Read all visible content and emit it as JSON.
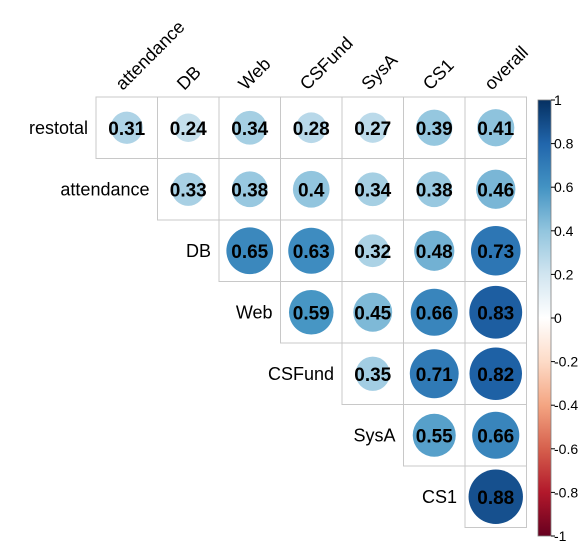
{
  "chart_data": {
    "type": "heatmap",
    "style": "correlation-matrix-upper-triangle-circles",
    "title": "",
    "row_labels": [
      "restotal",
      "attendance",
      "DB",
      "Web",
      "CSFund",
      "SysA",
      "CS1"
    ],
    "col_labels": [
      "attendance",
      "DB",
      "Web",
      "CSFund",
      "SysA",
      "CS1",
      "overall"
    ],
    "rows": [
      {
        "label": "restotal",
        "cells": [
          {
            "col": "attendance",
            "value": 0.31,
            "text": "0.31"
          },
          {
            "col": "DB",
            "value": 0.24,
            "text": "0.24"
          },
          {
            "col": "Web",
            "value": 0.34,
            "text": "0.34"
          },
          {
            "col": "CSFund",
            "value": 0.28,
            "text": "0.28"
          },
          {
            "col": "SysA",
            "value": 0.27,
            "text": "0.27"
          },
          {
            "col": "CS1",
            "value": 0.39,
            "text": "0.39"
          },
          {
            "col": "overall",
            "value": 0.41,
            "text": "0.41"
          }
        ]
      },
      {
        "label": "attendance",
        "cells": [
          {
            "col": "DB",
            "value": 0.33,
            "text": "0.33"
          },
          {
            "col": "Web",
            "value": 0.38,
            "text": "0.38"
          },
          {
            "col": "CSFund",
            "value": 0.4,
            "text": "0.4"
          },
          {
            "col": "SysA",
            "value": 0.34,
            "text": "0.34"
          },
          {
            "col": "CS1",
            "value": 0.38,
            "text": "0.38"
          },
          {
            "col": "overall",
            "value": 0.46,
            "text": "0.46"
          }
        ]
      },
      {
        "label": "DB",
        "cells": [
          {
            "col": "Web",
            "value": 0.65,
            "text": "0.65"
          },
          {
            "col": "CSFund",
            "value": 0.63,
            "text": "0.63"
          },
          {
            "col": "SysA",
            "value": 0.32,
            "text": "0.32"
          },
          {
            "col": "CS1",
            "value": 0.48,
            "text": "0.48"
          },
          {
            "col": "overall",
            "value": 0.73,
            "text": "0.73"
          }
        ]
      },
      {
        "label": "Web",
        "cells": [
          {
            "col": "CSFund",
            "value": 0.59,
            "text": "0.59"
          },
          {
            "col": "SysA",
            "value": 0.45,
            "text": "0.45"
          },
          {
            "col": "CS1",
            "value": 0.66,
            "text": "0.66"
          },
          {
            "col": "overall",
            "value": 0.83,
            "text": "0.83"
          }
        ]
      },
      {
        "label": "CSFund",
        "cells": [
          {
            "col": "SysA",
            "value": 0.35,
            "text": "0.35"
          },
          {
            "col": "CS1",
            "value": 0.71,
            "text": "0.71"
          },
          {
            "col": "overall",
            "value": 0.82,
            "text": "0.82"
          }
        ]
      },
      {
        "label": "SysA",
        "cells": [
          {
            "col": "CS1",
            "value": 0.55,
            "text": "0.55"
          },
          {
            "col": "overall",
            "value": 0.66,
            "text": "0.66"
          }
        ]
      },
      {
        "label": "CS1",
        "cells": [
          {
            "col": "overall",
            "value": 0.88,
            "text": "0.88"
          }
        ]
      }
    ],
    "colorbar": {
      "range": [
        -1,
        1
      ],
      "ticks": [
        1,
        0.8,
        0.6,
        0.4,
        0.2,
        0,
        -0.2,
        -0.4,
        -0.6,
        -0.8,
        -1
      ],
      "tick_labels": [
        "1",
        "0.8",
        "0.6",
        "0.4",
        "0.2",
        "0",
        "-0.2",
        "-0.4",
        "-0.6",
        "-0.8",
        "-1"
      ],
      "colors": [
        "#67001f",
        "#b2182b",
        "#d6604d",
        "#f4a582",
        "#fddbc7",
        "#ffffff",
        "#d1e5f0",
        "#92c5de",
        "#4393c3",
        "#2166ac",
        "#053061"
      ],
      "placement": "right"
    },
    "grid": true
  }
}
